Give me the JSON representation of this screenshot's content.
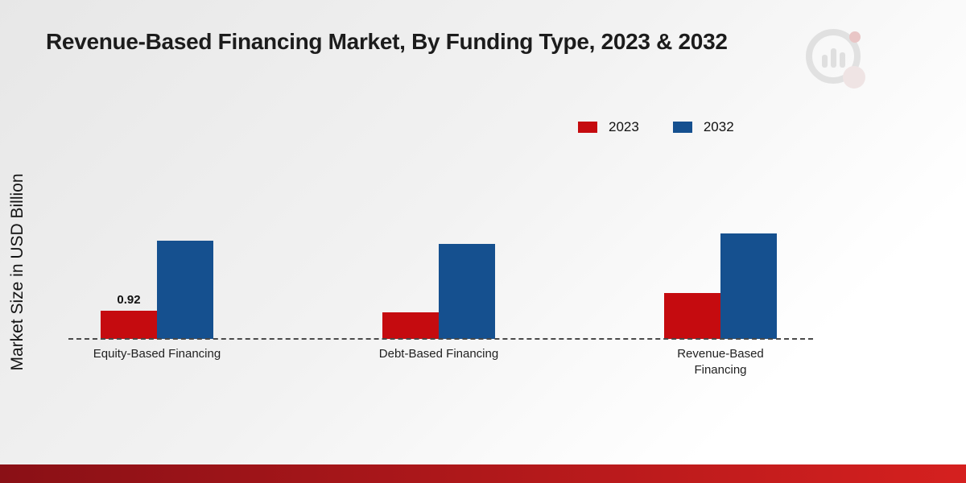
{
  "title": "Revenue-Based Financing Market, By Funding Type, 2023 & 2032",
  "y_axis_label": "Market Size in USD Billion",
  "chart_data": {
    "type": "bar",
    "title": "Revenue-Based Financing Market, By Funding Type, 2023 & 2032",
    "xlabel": "",
    "ylabel": "Market Size in USD Billion",
    "categories": [
      "Equity-Based Financing",
      "Debt-Based Financing",
      "Revenue-Based Financing"
    ],
    "series": [
      {
        "name": "2023",
        "color": "#c50b0f",
        "values": [
          0.92,
          0.87,
          1.5
        ]
      },
      {
        "name": "2032",
        "color": "#15508f",
        "values": [
          3.2,
          3.1,
          3.45
        ]
      }
    ],
    "annotations": [
      {
        "series": "2023",
        "category_index": 0,
        "text": "0.92"
      }
    ],
    "ylim": [
      0,
      3.6
    ],
    "grid": false,
    "legend_position": "top-right",
    "baseline_style": "dashed"
  },
  "colors": {
    "series_2023": "#c50b0f",
    "series_2032": "#15508f",
    "footer_gradient_start": "#8a1016",
    "footer_gradient_end": "#d5201f",
    "background_start": "#e7e7e7",
    "background_end": "#ffffff"
  }
}
